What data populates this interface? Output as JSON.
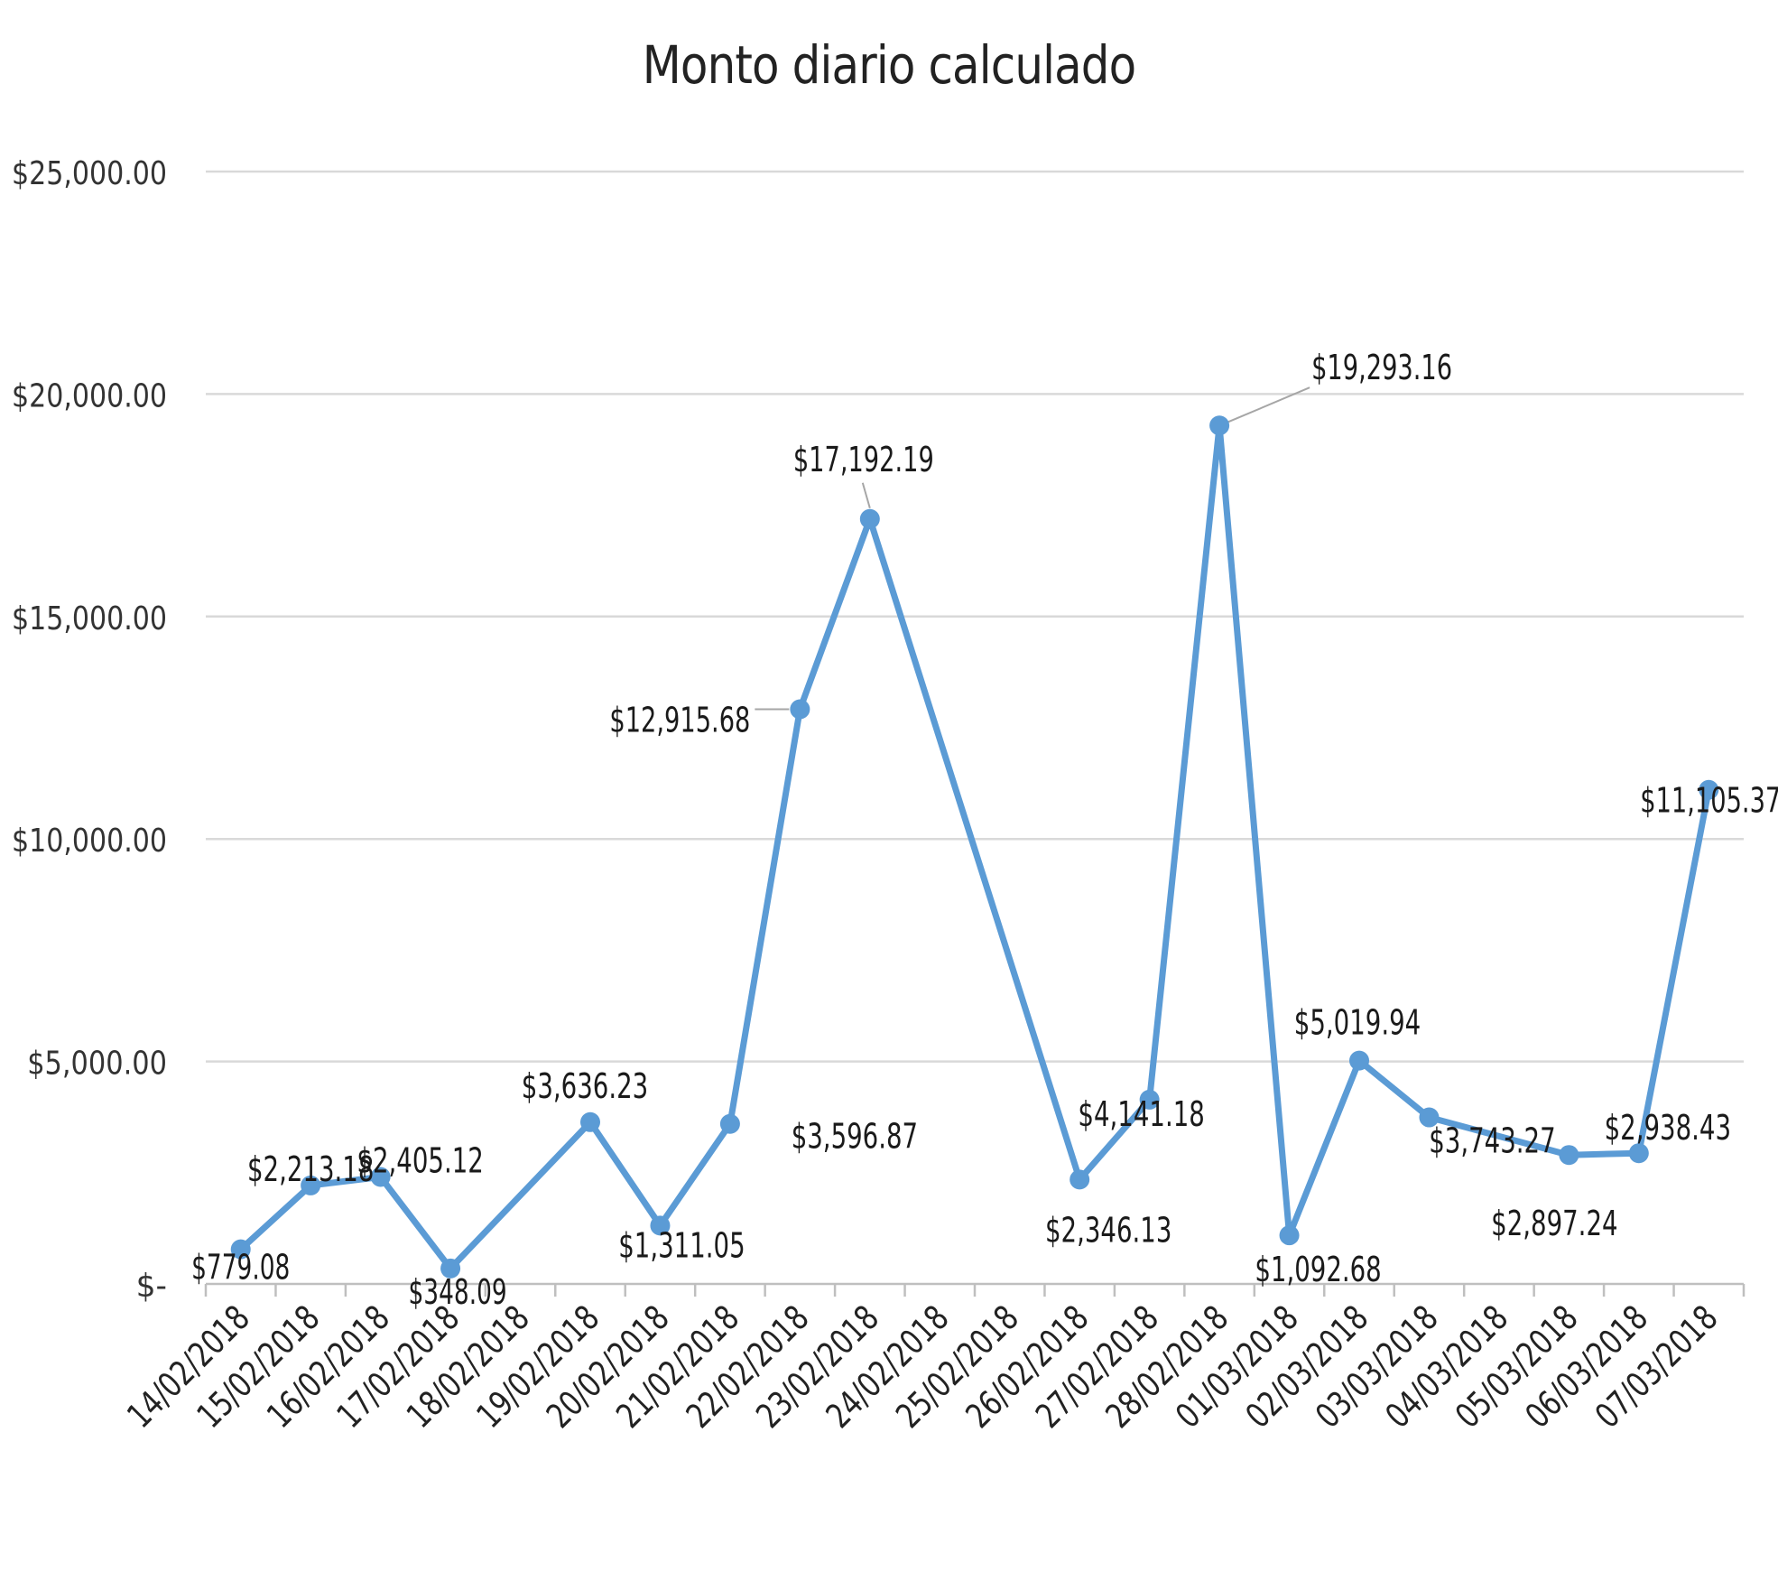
{
  "chart_data": {
    "type": "line",
    "title": "Monto diario calculado",
    "xlabel": "",
    "ylabel": "",
    "ylim": [
      0,
      25000
    ],
    "y_ticks": [
      {
        "value": 0,
        "label": "$-"
      },
      {
        "value": 5000,
        "label": "$5,000.00"
      },
      {
        "value": 10000,
        "label": "$10,000.00"
      },
      {
        "value": 15000,
        "label": "$15,000.00"
      },
      {
        "value": 20000,
        "label": "$20,000.00"
      },
      {
        "value": 25000,
        "label": "$25,000.00"
      }
    ],
    "grid": true,
    "legend": "none",
    "categories": [
      "14/02/2018",
      "15/02/2018",
      "16/02/2018",
      "17/02/2018",
      "18/02/2018",
      "19/02/2018",
      "20/02/2018",
      "21/02/2018",
      "22/02/2018",
      "23/02/2018",
      "24/02/2018",
      "25/02/2018",
      "26/02/2018",
      "27/02/2018",
      "28/02/2018",
      "01/03/2018",
      "02/03/2018",
      "03/03/2018",
      "04/03/2018",
      "05/03/2018",
      "06/03/2018",
      "07/03/2018"
    ],
    "series": [
      {
        "color": "#5b9bd5",
        "points": [
          {
            "x": "14/02/2018",
            "y": 779.08,
            "label": "$779.08"
          },
          {
            "x": "15/02/2018",
            "y": 2213.18,
            "label": "$2,213.18"
          },
          {
            "x": "16/02/2018",
            "y": 2405.12,
            "label": "$2,405.12"
          },
          {
            "x": "17/02/2018",
            "y": 348.09,
            "label": "$348.09"
          },
          {
            "x": "19/02/2018",
            "y": 3636.23,
            "label": "$3,636.23"
          },
          {
            "x": "20/02/2018",
            "y": 1311.05,
            "label": "$1,311.05"
          },
          {
            "x": "21/02/2018",
            "y": 3596.87,
            "label": "$3,596.87"
          },
          {
            "x": "22/02/2018",
            "y": 12915.68,
            "label": "$12,915.68"
          },
          {
            "x": "23/02/2018",
            "y": 17192.19,
            "label": "$17,192.19"
          },
          {
            "x": "26/02/2018",
            "y": 2346.13,
            "label": "$2,346.13"
          },
          {
            "x": "27/02/2018",
            "y": 4141.18,
            "label": "$4,141.18"
          },
          {
            "x": "28/02/2018",
            "y": 19293.16,
            "label": "$19,293.16"
          },
          {
            "x": "01/03/2018",
            "y": 1092.68,
            "label": "$1,092.68"
          },
          {
            "x": "02/03/2018",
            "y": 5019.94,
            "label": "$5,019.94"
          },
          {
            "x": "03/03/2018",
            "y": 3743.27,
            "label": "$3,743.27"
          },
          {
            "x": "05/03/2018",
            "y": 2897.24,
            "label": "$2,897.24"
          },
          {
            "x": "06/03/2018",
            "y": 2938.43,
            "label": "$2,938.43"
          },
          {
            "x": "07/03/2018",
            "y": 11105.37,
            "label": "$11,105.37"
          }
        ]
      }
    ]
  }
}
